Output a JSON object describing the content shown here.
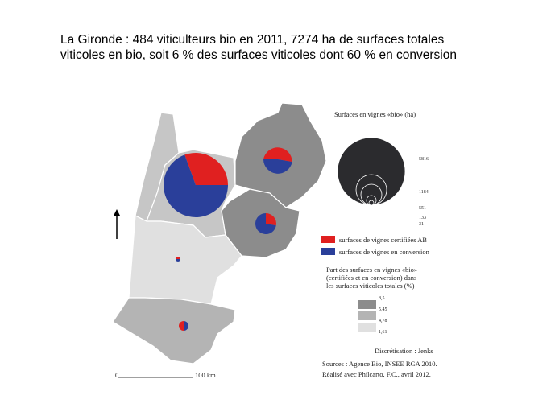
{
  "title": {
    "line1": "La Gironde : 484 viticulteurs bio en 2011, 7274 ha de surfaces totales",
    "line2": "viticoles en bio, soit 6 % des surfaces viticoles dont 60 % en conversion"
  },
  "size_legend": {
    "title": "Surfaces en vignes «bio» (ha)",
    "labels": [
      "5816",
      "1184",
      "551",
      "133",
      "31"
    ]
  },
  "color_legend": {
    "certified": "surfaces de vignes certifiées AB",
    "conversion": "surfaces de vignes en conversion"
  },
  "share_legend": {
    "title": [
      "Part des surfaces en vignes «bio»",
      "(certifiées et en conversion) dans",
      "les surfaces viticoles totales (%)"
    ],
    "breaks": [
      "8,5",
      "5,45",
      "4,78",
      "1,61"
    ]
  },
  "method": "Discrétisation : Jenks",
  "sources": [
    "Sources : Agence Bio, INSEE RGA 2010.",
    "Réalisé avec Philcarto, F.C., avril 2012."
  ],
  "scale": {
    "start": "0",
    "end": "100 km"
  }
}
